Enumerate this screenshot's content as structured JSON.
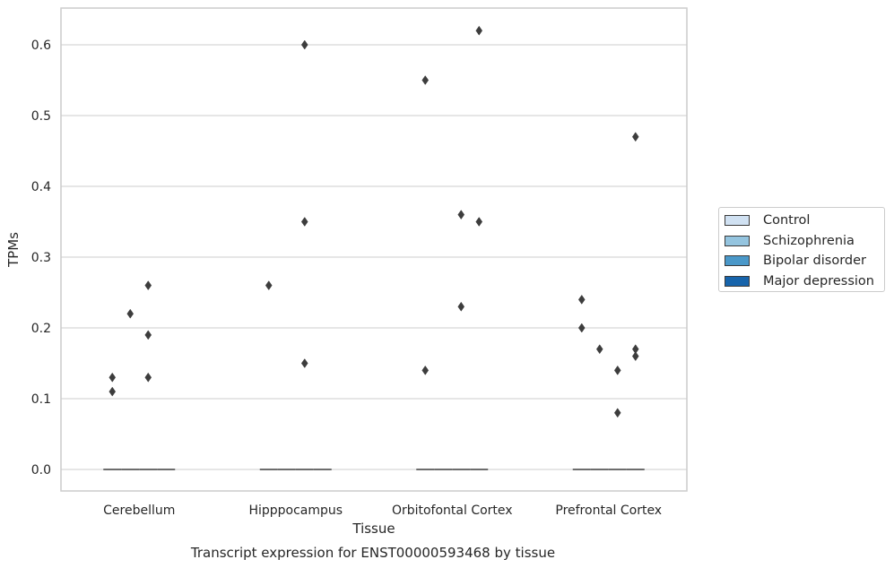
{
  "chart_data": {
    "type": "box",
    "title": "Transcript expression for ENST00000593468 by tissue",
    "xlabel": "Tissue",
    "ylabel": "TPMs",
    "ylim": [
      -0.03,
      0.655
    ],
    "yticks": [
      "0.0",
      "0.1",
      "0.2",
      "0.3",
      "0.4",
      "0.5",
      "0.6"
    ],
    "grid": true,
    "legend_position": "outside-right",
    "categories": [
      "Cerebellum",
      "Hipppocampus",
      "Orbitofontal Cortex",
      "Prefrontal Cortex"
    ],
    "series": [
      {
        "name": "Control",
        "color": "#d0e1f2",
        "medians": [
          0,
          0,
          0,
          0
        ],
        "outliers": [
          [
            0.13,
            0.11
          ],
          [
            0.26
          ],
          [
            0.14,
            0.55
          ],
          [
            0.24,
            0.2
          ]
        ]
      },
      {
        "name": "Schizophrenia",
        "color": "#94c4df",
        "medians": [
          0,
          0,
          0,
          0
        ],
        "outliers": [
          [
            0.22
          ],
          [],
          [],
          [
            0.17
          ]
        ]
      },
      {
        "name": "Bipolar disorder",
        "color": "#4a98c9",
        "medians": [
          0,
          0,
          0,
          0
        ],
        "outliers": [
          [
            0.26,
            0.19,
            0.13
          ],
          [
            0.6,
            0.35,
            0.15
          ],
          [
            0.36,
            0.23
          ],
          [
            0.14,
            0.08
          ]
        ]
      },
      {
        "name": "Major depression",
        "color": "#1764ab",
        "medians": [
          0,
          0,
          0,
          0
        ],
        "outliers": [
          [],
          [],
          [
            0.62,
            0.35
          ],
          [
            0.47,
            0.17,
            0.16
          ]
        ]
      }
    ]
  }
}
